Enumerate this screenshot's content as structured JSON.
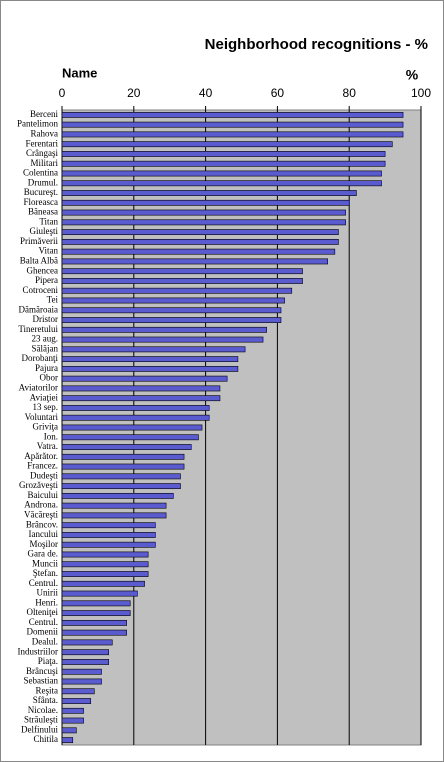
{
  "chart_data": {
    "type": "bar",
    "title": "Neighborhood recognitions - %",
    "y_label": "Name",
    "x_label": "%",
    "categories": [
      "Berceni",
      "Pantelimon",
      "Rahova",
      "Ferentari",
      "Crângaşi",
      "Militari",
      "Colentina",
      "Drumul.",
      "Bucureşt.",
      "Floreasca",
      "Băneasa",
      "Titan",
      "Giuleşti",
      "Primăverii",
      "Vitan",
      "Balta Albă",
      "Ghencea",
      "Pipera",
      "Cotroceni",
      "Tei",
      "Dămăroaia",
      "Dristor",
      "Tineretului",
      "23 aug.",
      "Sălăjan",
      "Dorobanţi",
      "Pajura",
      "Obor",
      "Aviatorilor",
      "Aviaţiei",
      "13 sep.",
      "Voluntari",
      "Griviţa",
      "Ion.",
      "Vatra.",
      "Apărător.",
      "Francez.",
      "Dudeşti",
      "Grozăveşti",
      "Baicului",
      "Androna.",
      "Văcăreşti",
      "Brâncov.",
      "Iancului",
      "Moşilor",
      "Gara de.",
      "Muncii",
      "Ştefan.",
      "Centrul.",
      "Unirii",
      "Henri.",
      "Olteniţei",
      "Centrul.",
      "Domenii",
      "Dealul.",
      "Industriilor",
      "Piaţa.",
      "Brâncuşi",
      "Sebastian",
      "Reşita",
      "Sfânta.",
      "Nicolae.",
      "Străuleşti",
      "Delfinului",
      "Chitila"
    ],
    "values": [
      95,
      95,
      95,
      92,
      90,
      90,
      89,
      89,
      82,
      80,
      79,
      79,
      77,
      77,
      76,
      74,
      67,
      67,
      64,
      62,
      61,
      61,
      57,
      56,
      51,
      49,
      49,
      46,
      44,
      44,
      41,
      41,
      39,
      38,
      36,
      34,
      34,
      33,
      33,
      31,
      29,
      29,
      26,
      26,
      26,
      24,
      24,
      24,
      23,
      21,
      19,
      19,
      18,
      18,
      14,
      13,
      13,
      11,
      11,
      9,
      8,
      6,
      6,
      4,
      3
    ],
    "color": "#5b5bd0",
    "background": "#c0c0c0",
    "xlim": [
      0,
      100
    ],
    "xticks": [
      0,
      20,
      40,
      60,
      80,
      100
    ],
    "grid": true
  }
}
